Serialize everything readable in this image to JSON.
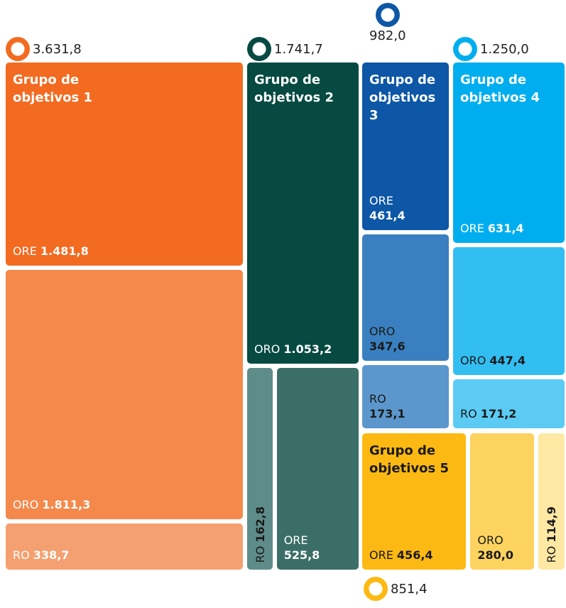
{
  "chart_data": {
    "type": "treemap",
    "groups": [
      {
        "name": "Grupo de objetivos 1",
        "total": 3631.8,
        "total_label": "3.631,8",
        "categories": [
          "ORE",
          "ORO",
          "RO"
        ],
        "values": [
          1481.8,
          1811.3,
          338.7
        ],
        "value_labels": [
          "1.481,8",
          "1.811,3",
          "338,7"
        ],
        "colors": [
          "#f26b21",
          "#f4894b",
          "#f5a070"
        ],
        "label_colors": [
          "#ffffff",
          "#ffffff",
          "#ffffff"
        ]
      },
      {
        "name": "Grupo de objetivos 2",
        "total": 1741.7,
        "total_label": "1.741,7",
        "categories": [
          "ORO",
          "RO",
          "ORE"
        ],
        "values": [
          1053.2,
          162.8,
          525.8
        ],
        "value_labels": [
          "1.053,2",
          "162,8",
          "525,8"
        ],
        "colors": [
          "#064a42",
          "#5e8c89",
          "#3b6e67"
        ],
        "label_colors": [
          "#ffffff",
          "#1a1a1a",
          "#ffffff"
        ]
      },
      {
        "name": "Grupo de objetivos 3",
        "total": 982.0,
        "total_label": "982,0",
        "categories": [
          "ORE",
          "ORO",
          "RO"
        ],
        "values": [
          461.4,
          347.6,
          173.1
        ],
        "value_labels": [
          "461,4",
          "347,6",
          "173,1"
        ],
        "colors": [
          "#0d57a6",
          "#3a80c0",
          "#5b97cc"
        ],
        "label_colors": [
          "#ffffff",
          "#1a1a1a",
          "#1a1a1a"
        ]
      },
      {
        "name": "Grupo de objetivos 4",
        "total": 1250.0,
        "total_label": "1.250,0",
        "categories": [
          "ORE",
          "ORO",
          "RO"
        ],
        "values": [
          631.4,
          447.4,
          171.2
        ],
        "value_labels": [
          "631,4",
          "447,4",
          "171,2"
        ],
        "colors": [
          "#00aeef",
          "#33bef2",
          "#5ccbf4"
        ],
        "label_colors": [
          "#ffffff",
          "#1a1a1a",
          "#1a1a1a"
        ]
      },
      {
        "name": "Grupo de objetivos 5",
        "total": 851.4,
        "total_label": "851,4",
        "categories": [
          "ORE",
          "ORO",
          "RO"
        ],
        "values": [
          456.4,
          280.0,
          114.9
        ],
        "value_labels": [
          "456,4",
          "280,0",
          "114,9"
        ],
        "colors": [
          "#fdb913",
          "#fdd35f",
          "#fee8a4"
        ],
        "label_colors": [
          "#1a1a1a",
          "#1a1a1a",
          "#1a1a1a"
        ]
      }
    ]
  }
}
